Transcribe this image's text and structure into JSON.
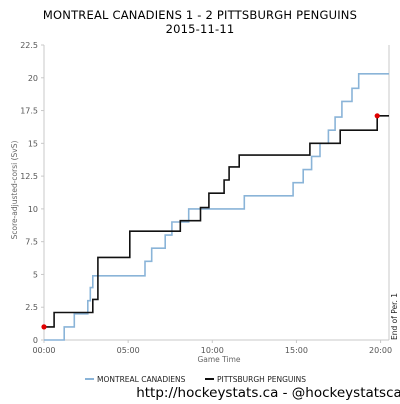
{
  "chart_data": {
    "type": "line",
    "title": "MONTREAL CANADIENS 1 - 2 PITTSBURGH PENGUINS",
    "subtitle": "2015-11-11",
    "xlabel": "Game Time",
    "ylabel": "Score-adjusted-corsi (SvS)",
    "x_ticks": [
      "00:00",
      "05:00",
      "10:00",
      "15:00",
      "20:00"
    ],
    "y_ticks": [
      "0",
      "2.5",
      "5",
      "7.5",
      "10",
      "12.5",
      "15",
      "17.5",
      "20",
      "22.5"
    ],
    "xlim": [
      0,
      20.5
    ],
    "ylim": [
      0,
      22.5
    ],
    "grid": false,
    "legend_position": "bottom",
    "annotation": "End of Per. 1",
    "footer": "http://hockeystats.ca - @hockeystatsca",
    "series": [
      {
        "name": "MONTREAL CANADIENS",
        "color": "#8ab4d8",
        "points": [
          [
            0.0,
            0
          ],
          [
            1.2,
            0
          ],
          [
            1.2,
            1
          ],
          [
            1.8,
            1
          ],
          [
            1.8,
            2
          ],
          [
            2.6,
            2
          ],
          [
            2.6,
            3
          ],
          [
            2.75,
            3
          ],
          [
            2.75,
            4
          ],
          [
            2.9,
            4
          ],
          [
            2.9,
            4.9
          ],
          [
            6.0,
            4.9
          ],
          [
            6.0,
            6
          ],
          [
            6.4,
            6
          ],
          [
            6.4,
            7
          ],
          [
            7.2,
            7
          ],
          [
            7.2,
            8
          ],
          [
            7.6,
            8
          ],
          [
            7.6,
            9
          ],
          [
            8.6,
            9
          ],
          [
            8.6,
            10
          ],
          [
            11.9,
            10
          ],
          [
            11.9,
            11
          ],
          [
            14.8,
            11
          ],
          [
            14.8,
            12
          ],
          [
            15.4,
            12
          ],
          [
            15.4,
            13
          ],
          [
            15.9,
            13
          ],
          [
            15.9,
            14
          ],
          [
            16.4,
            14
          ],
          [
            16.4,
            15
          ],
          [
            16.9,
            15
          ],
          [
            16.9,
            16
          ],
          [
            17.3,
            16
          ],
          [
            17.3,
            17
          ],
          [
            17.7,
            17
          ],
          [
            17.7,
            18.2
          ],
          [
            18.3,
            18.2
          ],
          [
            18.3,
            19.2
          ],
          [
            18.7,
            19.2
          ],
          [
            18.7,
            20.3
          ],
          [
            20.5,
            20.3
          ]
        ]
      },
      {
        "name": "PITTSBURGH PENGUINS",
        "color": "#111111",
        "points": [
          [
            0.0,
            1
          ],
          [
            0.6,
            1
          ],
          [
            0.6,
            2.1
          ],
          [
            2.9,
            2.1
          ],
          [
            2.9,
            3.1
          ],
          [
            3.2,
            3.1
          ],
          [
            3.2,
            6.3
          ],
          [
            3.9,
            6.3
          ],
          [
            3.9,
            6.3
          ],
          [
            5.1,
            6.3
          ],
          [
            5.1,
            8.3
          ],
          [
            8.1,
            8.3
          ],
          [
            8.1,
            9.1
          ],
          [
            9.3,
            9.1
          ],
          [
            9.3,
            10.1
          ],
          [
            9.8,
            10.1
          ],
          [
            9.8,
            11.2
          ],
          [
            10.7,
            11.2
          ],
          [
            10.7,
            12.2
          ],
          [
            11.0,
            12.2
          ],
          [
            11.0,
            13.2
          ],
          [
            11.6,
            13.2
          ],
          [
            11.6,
            14.1
          ],
          [
            15.8,
            14.1
          ],
          [
            15.8,
            15.0
          ],
          [
            17.6,
            15.0
          ],
          [
            17.6,
            16.0
          ],
          [
            19.8,
            16.0
          ],
          [
            19.8,
            17.1
          ],
          [
            20.5,
            17.1
          ]
        ]
      }
    ],
    "markers": [
      {
        "series": "PITTSBURGH PENGUINS",
        "x": 0.0,
        "y": 1,
        "color": "#e00000"
      },
      {
        "series": "PITTSBURGH PENGUINS",
        "x": 19.8,
        "y": 17.1,
        "color": "#e00000"
      }
    ]
  }
}
